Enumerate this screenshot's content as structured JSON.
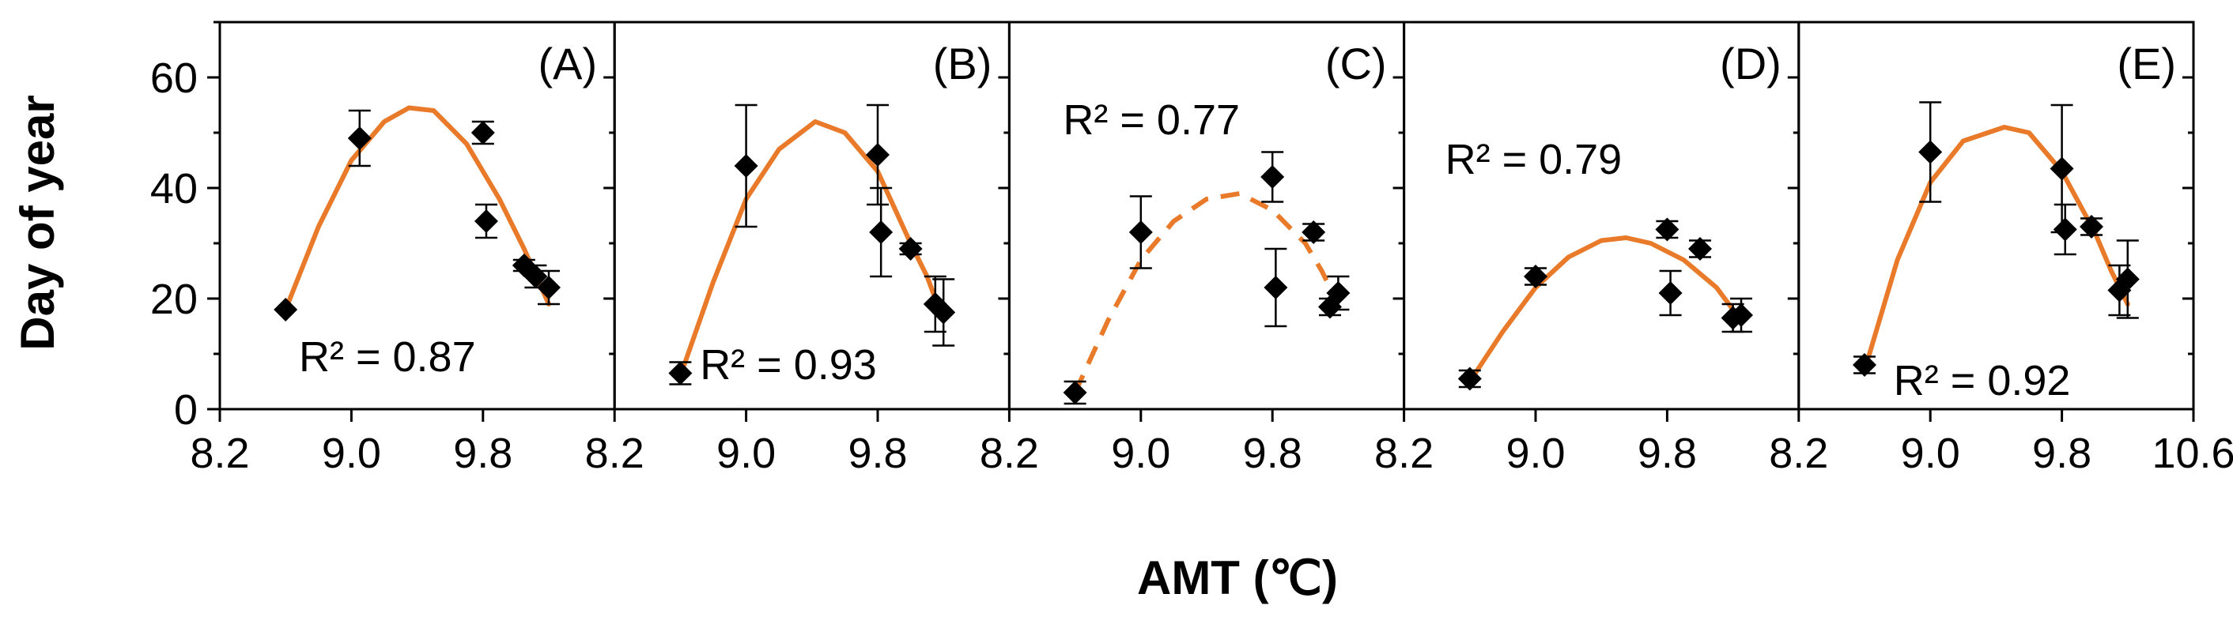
{
  "chart_data": {
    "type": "scatter",
    "ylabel": "Day of year",
    "xlabel": "AMT (℃)",
    "ylim": [
      0,
      70
    ],
    "yticks": [
      "0",
      "20",
      "40",
      "60"
    ],
    "xticks": [
      "8.2",
      "9.0",
      "9.8",
      "8.2",
      "9.0",
      "9.8",
      "8.2",
      "9.0",
      "9.8",
      "8.2",
      "9.0",
      "9.8",
      "8.2",
      "9.0",
      "9.8",
      "10.6"
    ],
    "colors": {
      "fit": "#E87A2A",
      "points": "#000000",
      "axes": "#000000"
    },
    "panels": [
      {
        "label": "(A)",
        "r2": "R² = 0.87",
        "fit_style": "solid",
        "xlim": [
          8.2,
          10.6
        ],
        "points": [
          {
            "x": 8.6,
            "y": 18,
            "err": 0
          },
          {
            "x": 9.05,
            "y": 49,
            "err": 5
          },
          {
            "x": 9.8,
            "y": 50,
            "err": 2
          },
          {
            "x": 9.82,
            "y": 34,
            "err": 3
          },
          {
            "x": 10.05,
            "y": 26,
            "err": 1
          },
          {
            "x": 10.12,
            "y": 24,
            "err": 2
          },
          {
            "x": 10.2,
            "y": 22,
            "err": 3
          }
        ],
        "fit": [
          {
            "x": 8.6,
            "y": 18
          },
          {
            "x": 8.8,
            "y": 33
          },
          {
            "x": 9.0,
            "y": 45
          },
          {
            "x": 9.2,
            "y": 52
          },
          {
            "x": 9.35,
            "y": 54.5
          },
          {
            "x": 9.5,
            "y": 54
          },
          {
            "x": 9.7,
            "y": 48
          },
          {
            "x": 9.9,
            "y": 38
          },
          {
            "x": 10.05,
            "y": 29
          },
          {
            "x": 10.2,
            "y": 19
          }
        ]
      },
      {
        "label": "(B)",
        "r2": "R² = 0.93",
        "fit_style": "solid",
        "xlim": [
          8.2,
          10.6
        ],
        "points": [
          {
            "x": 8.6,
            "y": 6.5,
            "err": 2
          },
          {
            "x": 9.0,
            "y": 44,
            "err": 11
          },
          {
            "x": 9.8,
            "y": 46,
            "err": 9
          },
          {
            "x": 9.82,
            "y": 32,
            "err": 8
          },
          {
            "x": 10.0,
            "y": 29,
            "err": 1
          },
          {
            "x": 10.15,
            "y": 19,
            "err": 5
          },
          {
            "x": 10.2,
            "y": 17.5,
            "err": 6
          }
        ],
        "fit": [
          {
            "x": 8.6,
            "y": 6
          },
          {
            "x": 8.8,
            "y": 23
          },
          {
            "x": 9.0,
            "y": 38
          },
          {
            "x": 9.2,
            "y": 47
          },
          {
            "x": 9.42,
            "y": 52
          },
          {
            "x": 9.6,
            "y": 50
          },
          {
            "x": 9.8,
            "y": 43
          },
          {
            "x": 10.0,
            "y": 30
          },
          {
            "x": 10.1,
            "y": 24
          },
          {
            "x": 10.2,
            "y": 16
          }
        ]
      },
      {
        "label": "(C)",
        "r2": "R² = 0.77",
        "fit_style": "dashed",
        "xlim": [
          8.2,
          10.6
        ],
        "points": [
          {
            "x": 8.6,
            "y": 3,
            "err": 2
          },
          {
            "x": 9.0,
            "y": 32,
            "err": 6.5
          },
          {
            "x": 9.8,
            "y": 42,
            "err": 4.5
          },
          {
            "x": 9.82,
            "y": 22,
            "err": 7
          },
          {
            "x": 10.05,
            "y": 32,
            "err": 1.5
          },
          {
            "x": 10.15,
            "y": 18.5,
            "err": 1.5
          },
          {
            "x": 10.2,
            "y": 21,
            "err": 3
          }
        ],
        "fit": [
          {
            "x": 8.6,
            "y": 3
          },
          {
            "x": 8.8,
            "y": 16
          },
          {
            "x": 9.0,
            "y": 27
          },
          {
            "x": 9.2,
            "y": 34
          },
          {
            "x": 9.4,
            "y": 38
          },
          {
            "x": 9.6,
            "y": 39
          },
          {
            "x": 9.8,
            "y": 36
          },
          {
            "x": 10.0,
            "y": 30
          },
          {
            "x": 10.1,
            "y": 25
          },
          {
            "x": 10.2,
            "y": 19
          }
        ]
      },
      {
        "label": "(D)",
        "r2": "R² = 0.79",
        "fit_style": "solid",
        "xlim": [
          8.2,
          10.6
        ],
        "points": [
          {
            "x": 8.6,
            "y": 5.5,
            "err": 1.5
          },
          {
            "x": 9.0,
            "y": 24,
            "err": 1.5
          },
          {
            "x": 9.8,
            "y": 32.5,
            "err": 1.5
          },
          {
            "x": 9.82,
            "y": 21,
            "err": 4
          },
          {
            "x": 10.0,
            "y": 29,
            "err": 1.5
          },
          {
            "x": 10.2,
            "y": 16.5,
            "err": 2.5
          },
          {
            "x": 10.25,
            "y": 17,
            "err": 3
          }
        ],
        "fit": [
          {
            "x": 8.6,
            "y": 5
          },
          {
            "x": 8.8,
            "y": 14
          },
          {
            "x": 9.0,
            "y": 22
          },
          {
            "x": 9.2,
            "y": 27.5
          },
          {
            "x": 9.4,
            "y": 30.5
          },
          {
            "x": 9.55,
            "y": 31
          },
          {
            "x": 9.7,
            "y": 30
          },
          {
            "x": 9.9,
            "y": 27
          },
          {
            "x": 10.1,
            "y": 22
          },
          {
            "x": 10.25,
            "y": 16
          }
        ]
      },
      {
        "label": "(E)",
        "r2": "R² = 0.92",
        "fit_style": "solid",
        "xlim": [
          8.2,
          10.6
        ],
        "points": [
          {
            "x": 8.6,
            "y": 8,
            "err": 1.5
          },
          {
            "x": 9.0,
            "y": 46.5,
            "err": 9
          },
          {
            "x": 9.8,
            "y": 43.5,
            "err": 11.5
          },
          {
            "x": 9.82,
            "y": 32.5,
            "err": 4.5
          },
          {
            "x": 9.98,
            "y": 33,
            "err": 1.5
          },
          {
            "x": 10.15,
            "y": 21.5,
            "err": 4.5
          },
          {
            "x": 10.2,
            "y": 23.5,
            "err": 7
          }
        ],
        "fit": [
          {
            "x": 8.6,
            "y": 7
          },
          {
            "x": 8.8,
            "y": 27
          },
          {
            "x": 9.0,
            "y": 41
          },
          {
            "x": 9.2,
            "y": 48.5
          },
          {
            "x": 9.45,
            "y": 51
          },
          {
            "x": 9.6,
            "y": 50
          },
          {
            "x": 9.8,
            "y": 43
          },
          {
            "x": 10.0,
            "y": 32
          },
          {
            "x": 10.1,
            "y": 25
          },
          {
            "x": 10.2,
            "y": 19
          }
        ]
      }
    ]
  }
}
